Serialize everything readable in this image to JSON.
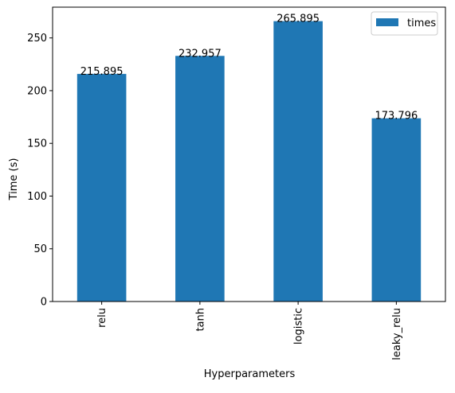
{
  "chart_data": {
    "type": "bar",
    "title": "",
    "xlabel": "Hyperparameters",
    "ylabel": "Time (s)",
    "categories": [
      "relu",
      "tanh",
      "logistic",
      "leaky_relu"
    ],
    "series": [
      {
        "name": "times",
        "values": [
          215.895,
          232.957,
          265.895,
          173.796
        ],
        "color": "#1f77b4"
      }
    ],
    "data_labels": [
      "215.895",
      "232.957",
      "265.895",
      "173.796"
    ],
    "ylim": [
      0,
      279.19
    ],
    "yticks": [
      0,
      50,
      100,
      150,
      200,
      250
    ],
    "grid": false,
    "legend_position": "top-right",
    "x_tick_rotation": "vertical"
  }
}
